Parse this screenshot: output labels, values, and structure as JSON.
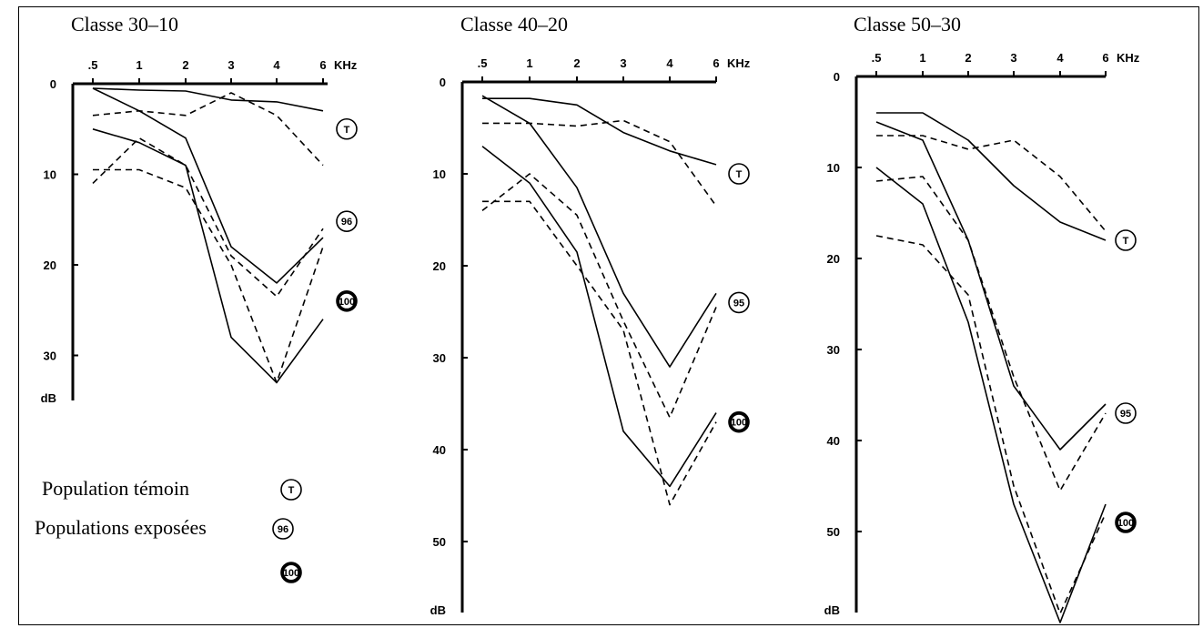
{
  "chart_data": [
    {
      "type": "line",
      "title": "Classe 30–10",
      "x_categories": [
        ".5",
        "1",
        "2",
        "3",
        "4",
        "6"
      ],
      "x_unit": "KHz",
      "y_unit": "dB",
      "ylim": [
        0,
        35
      ],
      "y_ticks": [
        0,
        10,
        20,
        30
      ],
      "y_inverted": true,
      "series": [
        {
          "group": "T",
          "style": "solid",
          "values": [
            0.5,
            0.7,
            0.8,
            1.8,
            2,
            3
          ]
        },
        {
          "group": "T",
          "style": "dashed",
          "values": [
            3.5,
            3,
            3.5,
            1,
            3.5,
            9
          ]
        },
        {
          "group": "96",
          "style": "solid",
          "values": [
            0.5,
            3,
            6,
            18,
            22,
            17
          ]
        },
        {
          "group": "96",
          "style": "dashed",
          "values": [
            11,
            6,
            9,
            19,
            23.5,
            16
          ]
        },
        {
          "group": "100",
          "style": "solid",
          "values": [
            5,
            6.5,
            9,
            28,
            33,
            26
          ]
        },
        {
          "group": "100",
          "style": "dashed",
          "values": [
            9.5,
            9.5,
            11.5,
            20,
            33,
            18
          ]
        }
      ],
      "markers": [
        {
          "label": "T",
          "y": 5
        },
        {
          "label": "96",
          "y": 16
        },
        {
          "label": "100",
          "y": 24
        }
      ]
    },
    {
      "type": "line",
      "title": "Classe 40–20",
      "x_categories": [
        ".5",
        "1",
        "2",
        "3",
        "4",
        "6"
      ],
      "x_unit": "KHz",
      "y_unit": "dB",
      "ylim": [
        0,
        55
      ],
      "y_ticks": [
        0,
        10,
        20,
        30,
        40,
        50
      ],
      "y_inverted": true,
      "series": [
        {
          "group": "T",
          "style": "solid",
          "values": [
            1.8,
            1.8,
            2.5,
            5.5,
            7.5,
            9
          ]
        },
        {
          "group": "T",
          "style": "dashed",
          "values": [
            4.5,
            4.5,
            4.8,
            4.2,
            6.5,
            13.5
          ]
        },
        {
          "group": "95",
          "style": "solid",
          "values": [
            1.5,
            4.5,
            11.5,
            23,
            31,
            23
          ]
        },
        {
          "group": "95",
          "style": "dashed",
          "values": [
            14,
            10,
            14.5,
            26,
            36.5,
            24.5
          ]
        },
        {
          "group": "100",
          "style": "solid",
          "values": [
            7,
            11,
            18.5,
            38,
            44,
            36
          ]
        },
        {
          "group": "100",
          "style": "dashed",
          "values": [
            13,
            13,
            20,
            27,
            46,
            37
          ]
        }
      ],
      "markers": [
        {
          "label": "T",
          "y": 10
        },
        {
          "label": "95",
          "y": 24
        },
        {
          "label": "100",
          "y": 37
        }
      ]
    },
    {
      "type": "line",
      "title": "Classe 50–30",
      "x_categories": [
        ".5",
        "1",
        "2",
        "3",
        "4",
        "6"
      ],
      "x_unit": "KHz",
      "y_unit": "dB",
      "ylim": [
        0,
        60
      ],
      "y_ticks": [
        0,
        10,
        20,
        30,
        40,
        50
      ],
      "y_inverted": true,
      "series": [
        {
          "group": "T",
          "style": "solid",
          "values": [
            4,
            4,
            7,
            12,
            16,
            18
          ]
        },
        {
          "group": "T",
          "style": "dashed",
          "values": [
            6.5,
            6.5,
            8,
            7,
            11,
            17
          ]
        },
        {
          "group": "95",
          "style": "solid",
          "values": [
            5,
            7,
            18,
            34,
            41,
            36
          ]
        },
        {
          "group": "95",
          "style": "dashed",
          "values": [
            11.5,
            11,
            18,
            33,
            45.5,
            37
          ]
        },
        {
          "group": "100",
          "style": "solid",
          "values": [
            10,
            14,
            27,
            47,
            60,
            47
          ]
        },
        {
          "group": "100",
          "style": "dashed",
          "values": [
            17.5,
            18.5,
            24,
            45,
            59,
            48
          ]
        }
      ],
      "markers": [
        {
          "label": "T",
          "y": 18
        },
        {
          "label": "95",
          "y": 37
        },
        {
          "label": "100",
          "y": 49
        }
      ]
    }
  ],
  "legend": {
    "control_label": "Population témoin",
    "control_marker": "T",
    "exposed_label": "Populations exposées",
    "exposed_markers": [
      "96",
      "100"
    ]
  }
}
